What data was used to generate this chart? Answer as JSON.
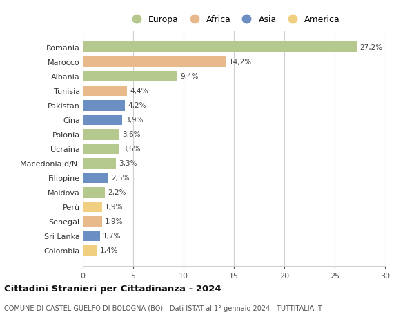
{
  "countries": [
    "Romania",
    "Marocco",
    "Albania",
    "Tunisia",
    "Pakistan",
    "Cina",
    "Polonia",
    "Ucraina",
    "Macedonia d/N.",
    "Filippine",
    "Moldova",
    "Perù",
    "Senegal",
    "Sri Lanka",
    "Colombia"
  ],
  "values": [
    27.2,
    14.2,
    9.4,
    4.4,
    4.2,
    3.9,
    3.6,
    3.6,
    3.3,
    2.5,
    2.2,
    1.9,
    1.9,
    1.7,
    1.4
  ],
  "labels": [
    "27,2%",
    "14,2%",
    "9,4%",
    "4,4%",
    "4,2%",
    "3,9%",
    "3,6%",
    "3,6%",
    "3,3%",
    "2,5%",
    "2,2%",
    "1,9%",
    "1,9%",
    "1,7%",
    "1,4%"
  ],
  "continents": [
    "Europa",
    "Africa",
    "Europa",
    "Africa",
    "Asia",
    "Asia",
    "Europa",
    "Europa",
    "Europa",
    "Asia",
    "Europa",
    "America",
    "Africa",
    "Asia",
    "America"
  ],
  "colors": {
    "Europa": "#b5c98e",
    "Africa": "#e8b98a",
    "Asia": "#6b8fc2",
    "America": "#f0d080"
  },
  "legend_order": [
    "Europa",
    "Africa",
    "Asia",
    "America"
  ],
  "title": "Cittadini Stranieri per Cittadinanza - 2024",
  "subtitle": "COMUNE DI CASTEL GUELFO DI BOLOGNA (BO) - Dati ISTAT al 1° gennaio 2024 - TUTTITALIA.IT",
  "xlim": [
    0,
    30
  ],
  "xticks": [
    0,
    5,
    10,
    15,
    20,
    25,
    30
  ],
  "background_color": "#ffffff",
  "grid_color": "#d0d0d0"
}
